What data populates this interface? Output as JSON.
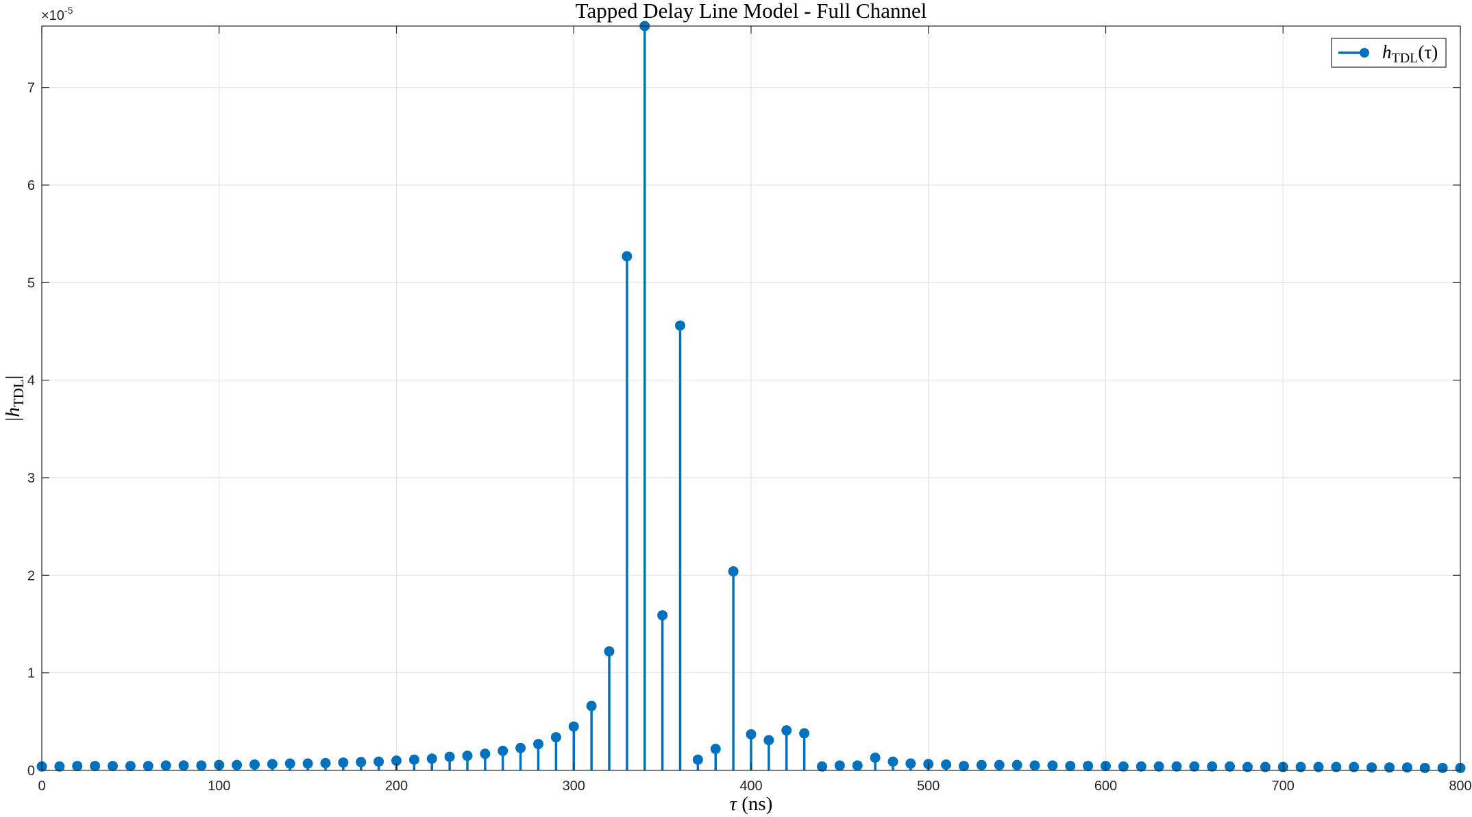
{
  "chart_data": {
    "type": "stem",
    "title": "Tapped Delay Line Model - Full Channel",
    "xlabel": "τ (ns)",
    "ylabel": "|hTDL|",
    "xlim": [
      0,
      800
    ],
    "ylim": [
      0,
      7.63e-05
    ],
    "y_exponent_label": "×10",
    "y_exponent_power": "-5",
    "xticks": [
      "0",
      "100",
      "200",
      "300",
      "400",
      "500",
      "600",
      "700",
      "800"
    ],
    "xtick_values": [
      0,
      100,
      200,
      300,
      400,
      500,
      600,
      700,
      800
    ],
    "yticks": [
      "0",
      "1",
      "2",
      "3",
      "4",
      "5",
      "6",
      "7"
    ],
    "ytick_values": [
      0,
      1,
      2,
      3,
      4,
      5,
      6,
      7
    ],
    "grid": true,
    "legend_position": "top-right",
    "color": "#0072BD",
    "series": [
      {
        "name": "hTDL(τ)",
        "x": [
          0,
          10,
          20,
          30,
          40,
          50,
          60,
          70,
          80,
          90,
          100,
          110,
          120,
          130,
          140,
          150,
          160,
          170,
          180,
          190,
          200,
          210,
          220,
          230,
          240,
          250,
          260,
          270,
          280,
          290,
          300,
          310,
          320,
          330,
          340,
          350,
          360,
          370,
          380,
          390,
          400,
          410,
          420,
          430,
          440,
          450,
          460,
          470,
          480,
          490,
          500,
          510,
          520,
          530,
          540,
          550,
          560,
          570,
          580,
          590,
          600,
          610,
          620,
          630,
          640,
          650,
          660,
          670,
          680,
          690,
          700,
          710,
          720,
          730,
          740,
          750,
          760,
          770,
          780,
          790,
          800
        ],
        "values": [
          0.04,
          0.04,
          0.045,
          0.045,
          0.045,
          0.045,
          0.045,
          0.05,
          0.05,
          0.05,
          0.055,
          0.055,
          0.06,
          0.065,
          0.07,
          0.07,
          0.075,
          0.08,
          0.085,
          0.09,
          0.1,
          0.11,
          0.12,
          0.14,
          0.15,
          0.17,
          0.2,
          0.23,
          0.27,
          0.34,
          0.45,
          0.66,
          1.22,
          5.27,
          7.63,
          1.59,
          4.56,
          0.11,
          0.22,
          2.04,
          0.37,
          0.31,
          0.41,
          0.38,
          0.04,
          0.05,
          0.05,
          0.13,
          0.09,
          0.07,
          0.065,
          0.06,
          0.045,
          0.055,
          0.055,
          0.055,
          0.05,
          0.05,
          0.045,
          0.045,
          0.045,
          0.04,
          0.04,
          0.04,
          0.04,
          0.04,
          0.04,
          0.04,
          0.035,
          0.035,
          0.035,
          0.035,
          0.035,
          0.035,
          0.035,
          0.03,
          0.03,
          0.03,
          0.025,
          0.025,
          0.025
        ]
      }
    ]
  },
  "legend": {
    "h": "h",
    "sub": "TDL",
    "arg": "(τ)"
  },
  "xlabel_parts": {
    "sym": "τ",
    "unit": " (ns)"
  },
  "ylabel_parts": {
    "open": "|",
    "h": "h",
    "sub": "TDL",
    "close": "|"
  }
}
